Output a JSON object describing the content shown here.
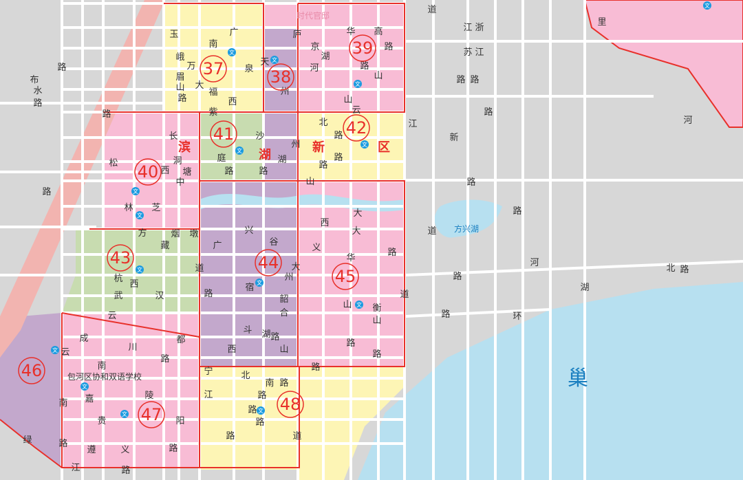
{
  "colors": {
    "residential": "#f8bcd5",
    "yellow": "#fdf5b5",
    "purple": "#c3a8cc",
    "green": "#c8dcb0",
    "lake": "#b7e0f0",
    "boundary": "#e8302a",
    "school": "#1a9be0"
  },
  "districts": [
    "37",
    "38",
    "39",
    "40",
    "41",
    "42",
    "43",
    "44",
    "45",
    "46",
    "47",
    "48"
  ],
  "area_name": [
    "滨",
    "湖",
    "新",
    "区"
  ],
  "lake_label": "巢",
  "pond_label": "方兴湖",
  "place_label": "时代官邸",
  "school_label": "包河区协和双语学校",
  "school_icon_text": "文",
  "road_labels": [
    "玉",
    "南",
    "广",
    "峨",
    "万",
    "眉",
    "山",
    "大",
    "路",
    "福",
    "西",
    "紫",
    "天",
    "泉",
    "州",
    "庐",
    "京",
    "湖",
    "河",
    "华",
    "高",
    "路",
    "山",
    "路",
    "山",
    "云",
    "北",
    "路",
    "新",
    "长",
    "洞",
    "西",
    "中",
    "塘",
    "沙",
    "庭",
    "路",
    "路",
    "湖",
    "州",
    "路",
    "路",
    "山",
    "林",
    "芝",
    "方",
    "烟",
    "墩",
    "藏",
    "道",
    "杭",
    "西",
    "武",
    "汉",
    "云",
    "兴",
    "广",
    "谷",
    "大",
    "州",
    "路",
    "宿",
    "韶",
    "合",
    "斗",
    "湖",
    "路",
    "山",
    "西",
    "大",
    "华",
    "路",
    "山",
    "道",
    "衡",
    "山",
    "路",
    "路",
    "义",
    "成",
    "川",
    "路",
    "都",
    "南",
    "嘉",
    "陵",
    "贵",
    "阳",
    "遵",
    "义",
    "路",
    "江",
    "路",
    "宁",
    "北",
    "南",
    "路",
    "江",
    "路",
    "路",
    "路",
    "路",
    "道",
    "云",
    "南",
    "路",
    "绿",
    "江",
    "道",
    "江",
    "浙",
    "苏",
    "江",
    "路",
    "路",
    "路",
    "路",
    "路",
    "道",
    "路",
    "路",
    "环",
    "湖",
    "北",
    "路",
    "河",
    "河",
    "布",
    "水",
    "路",
    "路",
    "松",
    "路",
    "路",
    "里",
    "西",
    "大",
    "路"
  ]
}
